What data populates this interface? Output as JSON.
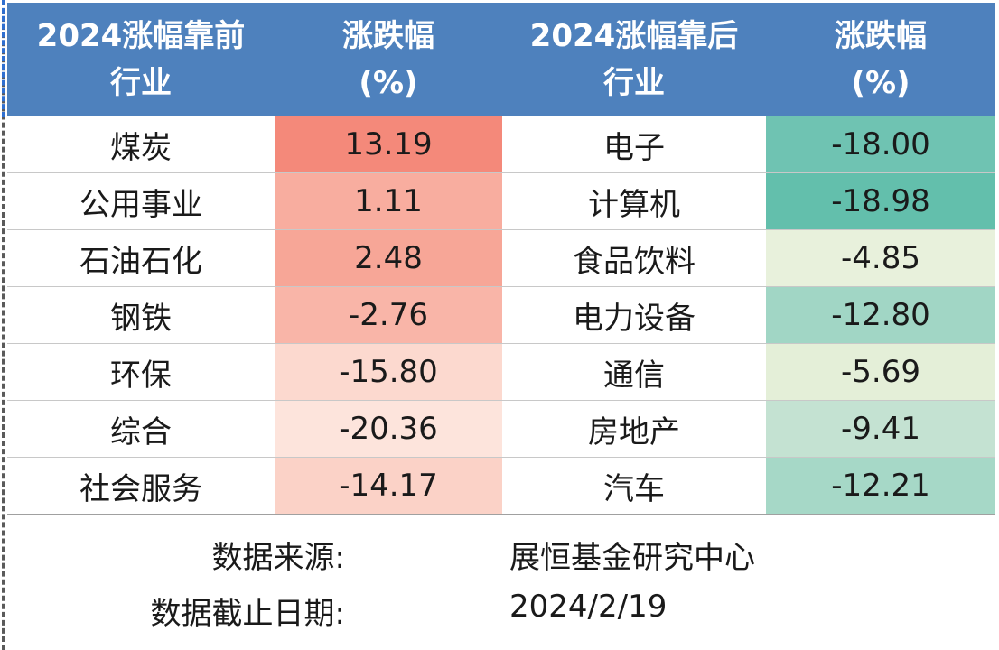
{
  "table": {
    "headers": {
      "left_industry": [
        "2024涨幅靠前",
        "行业"
      ],
      "left_change": [
        "涨跌幅",
        "(%)"
      ],
      "right_industry": [
        "2024涨幅靠后",
        "行业"
      ],
      "right_change": [
        "涨跌幅",
        "(%)"
      ]
    },
    "rows": [
      {
        "top_name": "煤炭",
        "top_value": "13.19",
        "top_color": "#f4897a",
        "bottom_name": "电子",
        "bottom_value": "-18.00",
        "bottom_color": "#6fc3b2"
      },
      {
        "top_name": "公用事业",
        "top_value": "1.11",
        "top_color": "#f8ad9f",
        "bottom_name": "计算机",
        "bottom_value": "-18.98",
        "bottom_color": "#63bfac"
      },
      {
        "top_name": "石油石化",
        "top_value": "2.48",
        "top_color": "#f7a697",
        "bottom_name": "食品饮料",
        "bottom_value": "-4.85",
        "bottom_color": "#e8f1dc"
      },
      {
        "top_name": "钢铁",
        "top_value": "-2.76",
        "top_color": "#f9b5a8",
        "bottom_name": "电力设备",
        "bottom_value": "-12.80",
        "bottom_color": "#a1d6c5"
      },
      {
        "top_name": "环保",
        "top_value": "-15.80",
        "top_color": "#fcd9cf",
        "bottom_name": "通信",
        "bottom_value": "-5.69",
        "bottom_color": "#e4efd8"
      },
      {
        "top_name": "综合",
        "top_value": "-20.36",
        "top_color": "#fde4dc",
        "bottom_name": "房地产",
        "bottom_value": "-9.41",
        "bottom_color": "#c4e2d2"
      },
      {
        "top_name": "社会服务",
        "top_value": "-14.17",
        "top_color": "#fbd2c7",
        "bottom_name": "汽车",
        "bottom_value": "-12.21",
        "bottom_color": "#a6d8c7"
      }
    ]
  },
  "footer": {
    "source_label": "数据来源:",
    "source_value": "展恒基金研究中心",
    "date_label": "数据截止日期:",
    "date_value": "2024/2/19"
  },
  "colors": {
    "header_bg": "#4e81bd",
    "header_text": "#ffffff"
  }
}
